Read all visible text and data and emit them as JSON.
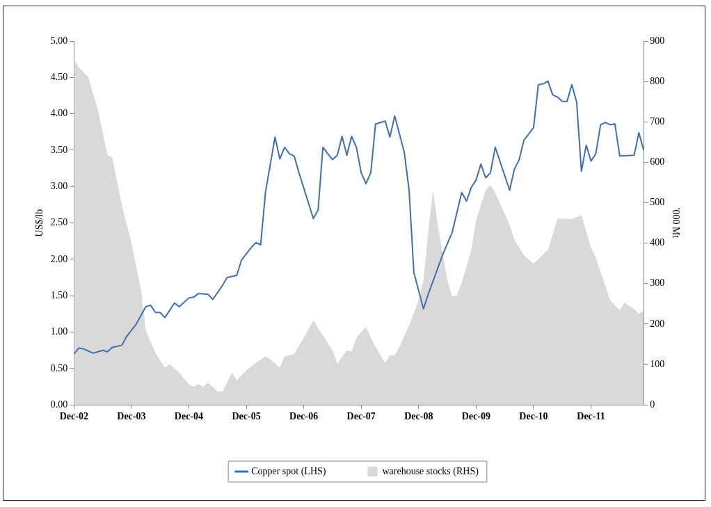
{
  "chart_data": {
    "type": "line",
    "ylabel": "US$/lb",
    "y2label": "'000 Mt",
    "legend": "bottom",
    "grid": false,
    "xlim": [
      "2002-12",
      "2012-11"
    ],
    "xticks": [
      {
        "value": "2002-12",
        "label": "Dec-02"
      },
      {
        "value": "2003-12",
        "label": "Dec-03"
      },
      {
        "value": "2004-12",
        "label": "Dec-04"
      },
      {
        "value": "2005-12",
        "label": "Dec-05"
      },
      {
        "value": "2006-12",
        "label": "Dec-06"
      },
      {
        "value": "2007-12",
        "label": "Dec-07"
      },
      {
        "value": "2008-12",
        "label": "Dec-08"
      },
      {
        "value": "2009-12",
        "label": "Dec-09"
      },
      {
        "value": "2010-12",
        "label": "Dec-10"
      },
      {
        "value": "2011-12",
        "label": "Dec-11"
      }
    ],
    "ylim": [
      0,
      5
    ],
    "yticks": [
      {
        "value": 0,
        "label": "0.00"
      },
      {
        "value": 0.5,
        "label": "0.50"
      },
      {
        "value": 1,
        "label": "1.00"
      },
      {
        "value": 1.5,
        "label": "1.50"
      },
      {
        "value": 2,
        "label": "2.00"
      },
      {
        "value": 2.5,
        "label": "2.50"
      },
      {
        "value": 3,
        "label": "3.00"
      },
      {
        "value": 3.5,
        "label": "3.50"
      },
      {
        "value": 4,
        "label": "4.00"
      },
      {
        "value": 4.5,
        "label": "4.50"
      },
      {
        "value": 5,
        "label": "5.00"
      }
    ],
    "y2lim": [
      0,
      900
    ],
    "y2ticks": [
      0,
      100,
      200,
      300,
      400,
      500,
      600,
      700,
      800,
      900
    ],
    "series": [
      {
        "name": "Copper spot (LHS)",
        "type": "line",
        "color": "#3f6fb0",
        "axis": "y",
        "x": [
          "2002-12",
          "2003-01",
          "2003-02",
          "2003-04",
          "2003-06",
          "2003-07",
          "2003-08",
          "2003-10",
          "2003-11",
          "2004-01",
          "2004-02",
          "2004-03",
          "2004-04",
          "2004-05",
          "2004-06",
          "2004-07",
          "2004-08",
          "2004-09",
          "2004-10",
          "2004-12",
          "2005-01",
          "2005-02",
          "2005-04",
          "2005-05",
          "2005-07",
          "2005-08",
          "2005-10",
          "2005-11",
          "2006-01",
          "2006-02",
          "2006-03",
          "2006-04",
          "2006-06",
          "2006-07",
          "2006-08",
          "2006-09",
          "2006-10",
          "2006-11",
          "2007-02",
          "2007-03",
          "2007-04",
          "2007-06",
          "2007-07",
          "2007-08",
          "2007-09",
          "2007-10",
          "2007-11",
          "2007-12",
          "2008-01",
          "2008-02",
          "2008-03",
          "2008-04",
          "2008-05",
          "2008-06",
          "2008-07",
          "2008-09",
          "2008-10",
          "2008-11",
          "2009-01",
          "2009-02",
          "2009-05",
          "2009-07",
          "2009-09",
          "2009-10",
          "2009-11",
          "2009-12",
          "2010-01",
          "2010-02",
          "2010-03",
          "2010-04",
          "2010-07",
          "2010-08",
          "2010-09",
          "2010-10",
          "2010-12",
          "2011-01",
          "2011-02",
          "2011-03",
          "2011-04",
          "2011-05",
          "2011-06",
          "2011-07",
          "2011-08",
          "2011-09",
          "2011-10",
          "2011-11",
          "2011-12",
          "2012-01",
          "2012-02",
          "2012-03",
          "2012-04",
          "2012-05",
          "2012-06",
          "2012-09",
          "2012-10",
          "2012-11"
        ],
        "values": [
          0.7,
          0.78,
          0.77,
          0.71,
          0.75,
          0.73,
          0.79,
          0.82,
          0.94,
          1.11,
          1.23,
          1.35,
          1.37,
          1.27,
          1.27,
          1.2,
          1.3,
          1.4,
          1.35,
          1.47,
          1.48,
          1.53,
          1.52,
          1.45,
          1.64,
          1.75,
          1.78,
          1.99,
          2.16,
          2.23,
          2.2,
          2.92,
          3.68,
          3.38,
          3.54,
          3.45,
          3.42,
          3.19,
          2.56,
          2.68,
          3.54,
          3.37,
          3.43,
          3.69,
          3.43,
          3.69,
          3.54,
          3.19,
          3.04,
          3.19,
          3.86,
          3.88,
          3.9,
          3.68,
          3.97,
          3.47,
          2.95,
          1.82,
          1.32,
          1.52,
          2.06,
          2.37,
          2.92,
          2.8,
          2.99,
          3.09,
          3.31,
          3.12,
          3.19,
          3.54,
          2.95,
          3.24,
          3.37,
          3.64,
          3.81,
          4.4,
          4.41,
          4.45,
          4.26,
          4.23,
          4.17,
          4.17,
          4.4,
          4.16,
          3.21,
          3.57,
          3.35,
          3.45,
          3.85,
          3.88,
          3.85,
          3.86,
          3.42,
          3.43,
          3.74,
          3.5
        ]
      },
      {
        "name": "warehouse stocks (RHS)",
        "type": "area",
        "color": "#d9d9d9",
        "axis": "y2",
        "x": [
          "2002-12",
          "2003-01",
          "2003-03",
          "2003-05",
          "2003-07",
          "2003-08",
          "2003-10",
          "2003-12",
          "2004-02",
          "2004-03",
          "2004-05",
          "2004-07",
          "2004-08",
          "2004-10",
          "2004-12",
          "2005-01",
          "2005-02",
          "2005-03",
          "2005-04",
          "2005-06",
          "2005-07",
          "2005-09",
          "2005-10",
          "2005-12",
          "2006-02",
          "2006-04",
          "2006-05",
          "2006-07",
          "2006-08",
          "2006-10",
          "2006-12",
          "2007-02",
          "2007-04",
          "2007-06",
          "2007-07",
          "2007-09",
          "2007-10",
          "2007-11",
          "2008-01",
          "2008-02",
          "2008-04",
          "2008-05",
          "2008-06",
          "2008-07",
          "2008-08",
          "2008-10",
          "2008-12",
          "2009-01",
          "2009-02",
          "2009-03",
          "2009-04",
          "2009-06",
          "2009-07",
          "2009-08",
          "2009-09",
          "2009-11",
          "2009-12",
          "2010-02",
          "2010-03",
          "2010-04",
          "2010-07",
          "2010-08",
          "2010-10",
          "2010-12",
          "2011-03",
          "2011-05",
          "2011-08",
          "2011-10",
          "2011-12",
          "2012-01",
          "2012-04",
          "2012-06",
          "2012-07",
          "2012-09",
          "2012-10",
          "2012-11"
        ],
        "values": [
          855,
          835,
          810,
          730,
          618,
          612,
          494,
          401,
          284,
          185,
          129,
          92,
          101,
          79,
          51,
          45,
          51,
          45,
          55,
          33,
          33,
          79,
          61,
          85,
          104,
          120,
          113,
          92,
          120,
          126,
          166,
          209,
          172,
          135,
          101,
          135,
          132,
          166,
          194,
          166,
          123,
          104,
          123,
          123,
          144,
          197,
          259,
          308,
          426,
          531,
          445,
          308,
          268,
          271,
          302,
          383,
          457,
          531,
          544,
          525,
          445,
          408,
          370,
          349,
          383,
          460,
          460,
          469,
          389,
          364,
          259,
          234,
          253,
          237,
          225,
          234
        ]
      }
    ]
  }
}
